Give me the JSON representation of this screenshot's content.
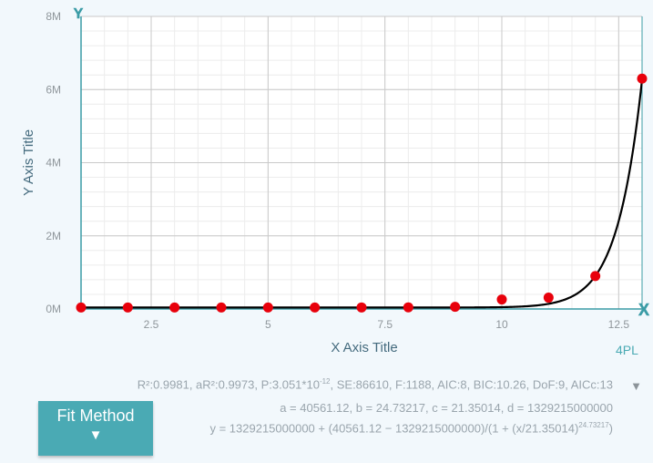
{
  "chart_data": {
    "type": "scatter",
    "xlabel": "X Axis Title",
    "ylabel": "Y Axis Title",
    "xlim": [
      1,
      13
    ],
    "ylim": [
      0,
      8000000
    ],
    "x_ticks": [
      2.5,
      5,
      7.5,
      10,
      12.5
    ],
    "x_tick_labels": [
      "2.5",
      "5",
      "7.5",
      "10",
      "12.5"
    ],
    "y_ticks": [
      0,
      2000000,
      4000000,
      6000000,
      8000000
    ],
    "y_tick_labels": [
      "0M",
      "2M",
      "4M",
      "6M",
      "8M"
    ],
    "grid": true,
    "points": {
      "x": [
        1,
        2,
        3,
        4,
        5,
        6,
        7,
        8,
        9,
        10,
        11,
        12,
        13
      ],
      "y": [
        40600,
        40600,
        40600,
        40600,
        40700,
        40900,
        42000,
        45000,
        60000,
        260000,
        310000,
        900000,
        6300000
      ],
      "color": "#e8000b"
    },
    "fit": {
      "model": "4PL",
      "a": 40561.12,
      "b": 24.73217,
      "c": 21.35014,
      "d": 1329215000000,
      "color": "#000000"
    }
  },
  "axis_marks": {
    "y_axis_symbol": "Y",
    "x_axis_symbol": "X"
  },
  "stats": {
    "line1_prefix": "R²:0.9981, aR²:0.9973, P:3.051*10",
    "line1_exp": "-12",
    "line1_suffix": ", SE:86610, F:1188, AIC:8, BIC:10.26, DoF:9, AICc:13",
    "line2": "a = 40561.12, b = 24.73217, c = 21.35014, d = 1329215000000",
    "line3_prefix": "y = 1329215000000 + (40561.12 − 1329215000000)/(1 + (x/21.35014)",
    "line3_exp": "24.73217",
    "line3_suffix": ")"
  },
  "expand_icon": "triangle-down-icon",
  "expand_glyph": "▼",
  "fit_button": {
    "label": "Fit Method",
    "arrow": "▼"
  },
  "model_label": "4PL",
  "colors": {
    "accent": "#4aaab4",
    "axis": "#3b9ca6",
    "background": "#f2f8fc",
    "plot_background": "#ffffff"
  }
}
